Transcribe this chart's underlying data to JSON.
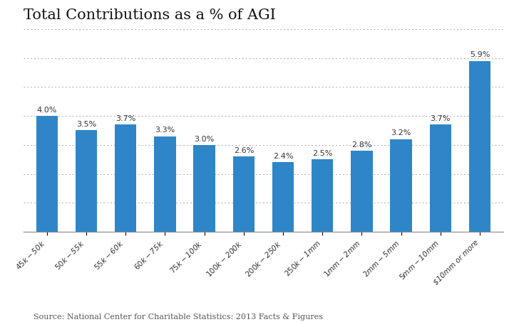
{
  "title": "Total Contributions as a % of AGI",
  "categories": [
    "$45k-$50k",
    "$50k-$55k",
    "$55k-$60k",
    "$60k-$75k",
    "$75k-$100k",
    "$100k-$200k",
    "$200k-$250k",
    "$250k-$1mm",
    "$1mm-$2mm",
    "$2mm-$5mm",
    "$5mm-$10mm",
    "$10mm or more"
  ],
  "values": [
    4.0,
    3.5,
    3.7,
    3.3,
    3.0,
    2.6,
    2.4,
    2.5,
    2.8,
    3.2,
    3.7,
    5.9
  ],
  "bar_color": "#2e86c8",
  "background_color": "#ffffff",
  "ylim": [
    0,
    7
  ],
  "grid_lines": [
    1,
    2,
    3,
    4,
    5,
    6,
    7
  ],
  "source_text": "Source: National Center for Charitable Statistics: 2013 Facts & Figures",
  "title_fontsize": 15,
  "label_fontsize": 8,
  "tick_fontsize": 7.5,
  "source_fontsize": 8
}
